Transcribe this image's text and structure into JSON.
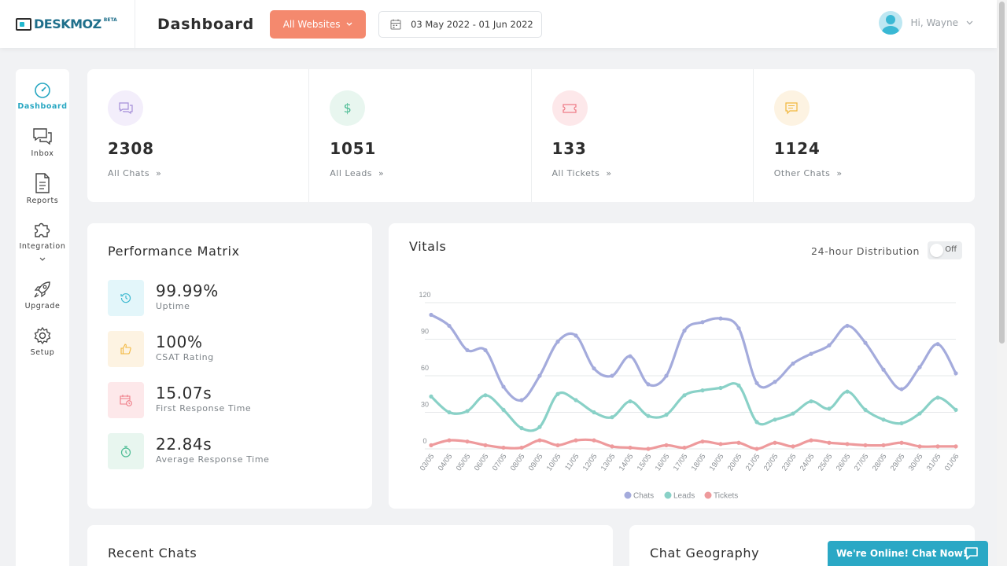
{
  "header": {
    "logo_text": "DESKMOZ",
    "logo_badge": "BETA",
    "title": "Dashboard",
    "website_select": "All Websites",
    "date_range": "03 May 2022 - 01 Jun 2022",
    "greeting": "Hi, Wayne"
  },
  "sidebar": {
    "items": [
      {
        "label": "Dashboard",
        "icon": "speedometer-icon"
      },
      {
        "label": "Inbox",
        "icon": "chat-bubbles-icon"
      },
      {
        "label": "Reports",
        "icon": "document-icon"
      },
      {
        "label": "Integration",
        "icon": "puzzle-icon"
      },
      {
        "label": "Upgrade",
        "icon": "rocket-icon"
      },
      {
        "label": "Setup",
        "icon": "gear-icon"
      }
    ]
  },
  "stats": [
    {
      "value": "2308",
      "label": "All Chats",
      "icon": "chat-icon",
      "color": "#a58fd9",
      "bg": "#f3eefb"
    },
    {
      "value": "1051",
      "label": "All Leads",
      "icon": "dollar-icon",
      "color": "#4cbc94",
      "bg": "#e8f6ef"
    },
    {
      "value": "133",
      "label": "All Tickets",
      "icon": "ticket-icon",
      "color": "#ef7b86",
      "bg": "#fde8ea"
    },
    {
      "value": "1124",
      "label": "Other Chats",
      "icon": "message-icon",
      "color": "#f2b73d",
      "bg": "#fdf3e2"
    }
  ],
  "performance": {
    "title": "Performance Matrix",
    "metrics": [
      {
        "value": "99.99%",
        "label": "Uptime",
        "icon": "history-icon",
        "color": "#3ab8cf",
        "bg": "#e3f6fa"
      },
      {
        "value": "100%",
        "label": "CSAT Rating",
        "icon": "thumbs-up-icon",
        "color": "#f2b73d",
        "bg": "#fdf3e2"
      },
      {
        "value": "15.07s",
        "label": "First Response Time",
        "icon": "calendar-clock-icon",
        "color": "#ef7b86",
        "bg": "#fde8ea"
      },
      {
        "value": "22.84s",
        "label": "Average Response Time",
        "icon": "stopwatch-icon",
        "color": "#4cbc94",
        "bg": "#e8f6ef"
      }
    ]
  },
  "vitals": {
    "title": "Vitals",
    "distribution_label": "24-hour Distribution",
    "toggle_label": "Off"
  },
  "chart_data": {
    "type": "line",
    "x": [
      "03/05",
      "04/05",
      "05/05",
      "06/05",
      "07/05",
      "08/05",
      "09/05",
      "10/05",
      "11/05",
      "12/05",
      "13/05",
      "14/05",
      "15/05",
      "16/05",
      "17/05",
      "18/05",
      "19/05",
      "20/05",
      "21/05",
      "22/05",
      "23/05",
      "24/05",
      "25/05",
      "26/05",
      "27/05",
      "28/05",
      "29/05",
      "30/05",
      "31/05",
      "01/06"
    ],
    "ylim": [
      0,
      120
    ],
    "yticks": [
      0,
      30,
      60,
      90,
      120
    ],
    "grid": true,
    "legend_position": "bottom",
    "series": [
      {
        "name": "Chats",
        "color": "#a4abdc",
        "values": [
          110,
          101,
          81,
          81,
          51,
          40,
          60,
          88,
          93,
          66,
          60,
          76,
          53,
          60,
          97,
          104,
          107,
          99,
          54,
          55,
          70,
          78,
          85,
          101,
          87,
          65,
          49,
          67,
          86,
          62
        ]
      },
      {
        "name": "Leads",
        "color": "#89d1c7",
        "values": [
          43,
          30,
          31,
          44,
          32,
          17,
          18,
          45,
          40,
          30,
          26,
          39,
          27,
          28,
          44,
          48,
          50,
          52,
          22,
          24,
          29,
          39,
          33,
          47,
          32,
          24,
          21,
          29,
          42,
          32
        ]
      },
      {
        "name": "Tickets",
        "color": "#ee9a9c",
        "values": [
          3,
          7,
          6,
          3,
          1,
          1,
          7,
          3,
          7,
          7,
          2,
          1,
          0,
          3,
          1,
          6,
          4,
          5,
          0,
          5,
          2,
          7,
          5,
          4,
          3,
          3,
          5,
          2,
          2,
          2
        ]
      }
    ]
  },
  "recent_chats": {
    "title": "Recent Chats"
  },
  "chat_geography": {
    "title": "Chat Geography"
  },
  "chat_widget": {
    "label": "We're Online! Chat Now!"
  }
}
